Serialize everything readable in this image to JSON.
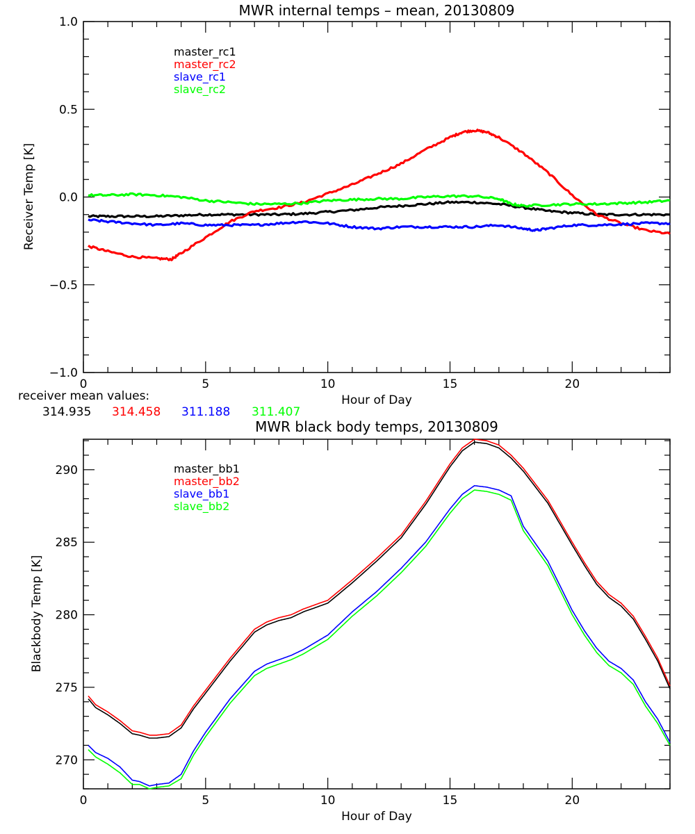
{
  "chart_data": [
    {
      "type": "line",
      "title": "MWR internal temps – mean, 20130809",
      "xlabel": "Hour of Day",
      "ylabel": "Receiver Temp [K]",
      "xlim": [
        0,
        24
      ],
      "ylim": [
        -1.0,
        1.0
      ],
      "xticks": [
        0,
        5,
        10,
        15,
        20
      ],
      "xtick_labels": [
        "0",
        "5",
        "10",
        "15",
        "20"
      ],
      "yticks": [
        -1.0,
        -0.5,
        0.0,
        0.5,
        1.0
      ],
      "ytick_labels": [
        "−1.0",
        "−0.5",
        "0.0",
        "0.5",
        "1.0"
      ],
      "grid": false,
      "legend_position": "top-left",
      "noisy": true,
      "series": [
        {
          "name": "master_rc1",
          "color": "#000000",
          "x": [
            0.2,
            1,
            2,
            3,
            4,
            5,
            6,
            7,
            8,
            9,
            10,
            11,
            12,
            13,
            14,
            15,
            16,
            17,
            18,
            19,
            20,
            21,
            22,
            23,
            24
          ],
          "y": [
            -0.11,
            -0.11,
            -0.11,
            -0.11,
            -0.105,
            -0.1,
            -0.1,
            -0.1,
            -0.1,
            -0.095,
            -0.085,
            -0.075,
            -0.06,
            -0.05,
            -0.04,
            -0.03,
            -0.03,
            -0.04,
            -0.06,
            -0.08,
            -0.09,
            -0.1,
            -0.1,
            -0.1,
            -0.1
          ]
        },
        {
          "name": "master_rc2",
          "color": "#ff0000",
          "x": [
            0.2,
            1,
            2,
            3,
            3.6,
            4,
            5,
            6,
            7,
            8,
            9,
            10,
            11,
            12,
            13,
            14,
            15,
            15.5,
            16,
            16.5,
            17,
            18,
            19,
            20,
            21,
            22,
            23,
            24
          ],
          "y": [
            -0.28,
            -0.31,
            -0.34,
            -0.35,
            -0.355,
            -0.32,
            -0.23,
            -0.14,
            -0.08,
            -0.06,
            -0.03,
            0.02,
            0.07,
            0.13,
            0.19,
            0.27,
            0.34,
            0.37,
            0.38,
            0.37,
            0.34,
            0.25,
            0.14,
            0.01,
            -0.1,
            -0.15,
            -0.19,
            -0.21
          ]
        },
        {
          "name": "slave_rc1",
          "color": "#0000ff",
          "x": [
            0.2,
            1,
            2,
            3,
            4,
            5,
            6,
            7,
            8,
            9,
            10,
            11,
            12,
            13,
            14,
            15,
            16,
            17,
            18,
            18.5,
            19,
            20,
            21,
            22,
            23,
            24
          ],
          "y": [
            -0.13,
            -0.14,
            -0.15,
            -0.16,
            -0.15,
            -0.16,
            -0.16,
            -0.16,
            -0.15,
            -0.14,
            -0.15,
            -0.17,
            -0.18,
            -0.17,
            -0.17,
            -0.17,
            -0.17,
            -0.16,
            -0.18,
            -0.19,
            -0.18,
            -0.16,
            -0.16,
            -0.155,
            -0.15,
            -0.15
          ]
        },
        {
          "name": "slave_rc2",
          "color": "#00ff00",
          "x": [
            0.2,
            1,
            2,
            3,
            4,
            5,
            6,
            7,
            8,
            9,
            10,
            11,
            12,
            13,
            14,
            15,
            16,
            17,
            17.5,
            18,
            19,
            20,
            21,
            22,
            23,
            24
          ],
          "y": [
            0.01,
            0.01,
            0.015,
            0.01,
            0.0,
            -0.02,
            -0.03,
            -0.04,
            -0.04,
            -0.035,
            -0.02,
            -0.015,
            -0.01,
            -0.01,
            0.0,
            0.005,
            0.005,
            -0.01,
            -0.04,
            -0.05,
            -0.045,
            -0.04,
            -0.04,
            -0.035,
            -0.03,
            -0.02
          ]
        }
      ],
      "annotation": {
        "label": "receiver mean values:",
        "values": [
          {
            "text": "314.935",
            "color": "#000000"
          },
          {
            "text": "314.458",
            "color": "#ff0000"
          },
          {
            "text": "311.188",
            "color": "#0000ff"
          },
          {
            "text": "311.407",
            "color": "#00ff00"
          }
        ]
      }
    },
    {
      "type": "line",
      "title": "MWR black body temps, 20130809",
      "xlabel": "Hour of Day",
      "ylabel": "Blackbody Temp [K]",
      "xlim": [
        0,
        24
      ],
      "ylim": [
        268.0,
        292.1
      ],
      "xticks": [
        0,
        5,
        10,
        15,
        20
      ],
      "xtick_labels": [
        "0",
        "5",
        "10",
        "15",
        "20"
      ],
      "yticks": [
        270,
        275,
        280,
        285,
        290
      ],
      "ytick_labels": [
        "270",
        "275",
        "280",
        "285",
        "290"
      ],
      "grid": false,
      "legend_position": "top-left",
      "noisy": false,
      "series": [
        {
          "name": "master_bb1",
          "color": "#000000",
          "x": [
            0.2,
            0.5,
            1,
            1.5,
            2,
            2.3,
            2.7,
            3,
            3.5,
            4,
            4.5,
            5,
            6,
            7,
            7.5,
            8,
            8.5,
            9,
            10,
            11,
            12,
            13,
            14,
            15,
            15.5,
            16,
            16.5,
            17,
            17.5,
            18,
            19,
            20,
            20.5,
            21,
            21.5,
            22,
            22.5,
            23,
            23.5,
            24
          ],
          "y": [
            274.2,
            273.6,
            273.1,
            272.5,
            271.8,
            271.7,
            271.5,
            271.5,
            271.6,
            272.2,
            273.5,
            274.6,
            276.8,
            278.8,
            279.3,
            279.6,
            279.8,
            280.2,
            280.8,
            282.2,
            283.7,
            285.3,
            287.6,
            290.2,
            291.3,
            291.9,
            291.8,
            291.5,
            290.8,
            289.9,
            287.7,
            284.8,
            283.4,
            282.1,
            281.2,
            280.6,
            279.7,
            278.3,
            276.8,
            274.9
          ]
        },
        {
          "name": "master_bb2",
          "color": "#ff0000",
          "x": [
            0.2,
            0.5,
            1,
            1.5,
            2,
            2.3,
            2.7,
            3,
            3.5,
            4,
            4.5,
            5,
            6,
            7,
            7.5,
            8,
            8.5,
            9,
            10,
            11,
            12,
            13,
            14,
            15,
            15.5,
            16,
            16.5,
            17,
            17.5,
            18,
            19,
            20,
            20.5,
            21,
            21.5,
            22,
            22.5,
            23,
            23.5,
            24
          ],
          "y": [
            274.4,
            273.8,
            273.3,
            272.7,
            272.0,
            271.9,
            271.7,
            271.7,
            271.8,
            272.4,
            273.7,
            274.8,
            277.0,
            279.0,
            279.5,
            279.8,
            280.0,
            280.4,
            281.0,
            282.4,
            283.9,
            285.5,
            287.8,
            290.4,
            291.5,
            292.1,
            292.0,
            291.7,
            291.0,
            290.1,
            287.9,
            285.0,
            283.6,
            282.3,
            281.4,
            280.8,
            279.9,
            278.5,
            277.0,
            275.1
          ]
        },
        {
          "name": "slave_bb1",
          "color": "#0000ff",
          "x": [
            0.2,
            0.5,
            1,
            1.5,
            2,
            2.3,
            2.7,
            3,
            3.5,
            4,
            4.5,
            5,
            6,
            7,
            7.5,
            8,
            8.5,
            9,
            10,
            11,
            12,
            13,
            14,
            15,
            15.5,
            16,
            16.5,
            17,
            17.5,
            18,
            19,
            20,
            20.5,
            21,
            21.5,
            22,
            22.5,
            23,
            23.5,
            24
          ],
          "y": [
            271.0,
            270.5,
            270.1,
            269.5,
            268.6,
            268.5,
            268.2,
            268.3,
            268.4,
            269.0,
            270.6,
            271.9,
            274.2,
            276.1,
            276.6,
            276.9,
            277.2,
            277.6,
            278.6,
            280.2,
            281.6,
            283.2,
            285.0,
            287.3,
            288.3,
            288.9,
            288.8,
            288.6,
            288.2,
            286.1,
            283.7,
            280.3,
            278.9,
            277.7,
            276.8,
            276.3,
            275.5,
            274.0,
            272.8,
            271.2
          ]
        },
        {
          "name": "slave_bb2",
          "color": "#00ff00",
          "x": [
            0.2,
            0.5,
            1,
            1.5,
            2,
            2.3,
            2.7,
            3,
            3.5,
            4,
            4.5,
            5,
            6,
            7,
            7.5,
            8,
            8.5,
            9,
            10,
            11,
            12,
            13,
            14,
            15,
            15.5,
            16,
            16.5,
            17,
            17.5,
            18,
            19,
            20,
            20.5,
            21,
            21.5,
            22,
            22.5,
            23,
            23.5,
            24
          ],
          "y": [
            270.7,
            270.2,
            269.7,
            269.1,
            268.3,
            268.3,
            268.0,
            268.1,
            268.2,
            268.7,
            270.3,
            271.6,
            273.9,
            275.8,
            276.3,
            276.6,
            276.9,
            277.3,
            278.3,
            279.9,
            281.3,
            282.9,
            284.7,
            287.0,
            288.0,
            288.6,
            288.5,
            288.3,
            287.9,
            285.8,
            283.4,
            280.0,
            278.6,
            277.4,
            276.5,
            276.0,
            275.2,
            273.7,
            272.5,
            271.0
          ]
        }
      ]
    }
  ]
}
